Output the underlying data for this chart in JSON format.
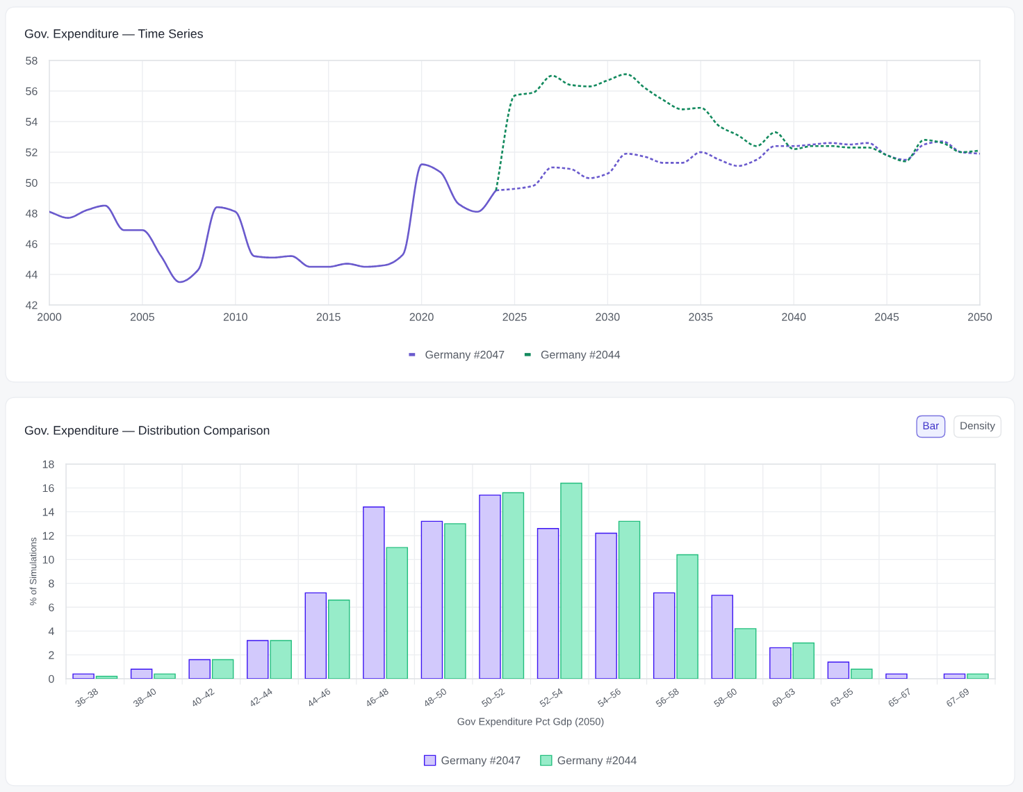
{
  "chart_data": [
    {
      "type": "line",
      "title": "Gov. Expenditure — Time Series",
      "xlim": [
        2000,
        2050
      ],
      "xticks": [
        2000,
        2005,
        2010,
        2015,
        2020,
        2025,
        2030,
        2035,
        2040,
        2045,
        2050
      ],
      "ylim": [
        42,
        58
      ],
      "yticks": [
        42,
        44,
        46,
        48,
        50,
        52,
        54,
        56,
        58
      ],
      "grid": true,
      "legend": "bottom",
      "series": [
        {
          "color": "#6a5acd",
          "line_style": "solid",
          "x": [
            2000,
            2001,
            2002,
            2003,
            2004,
            2005,
            2006,
            2007,
            2008,
            2009,
            2010,
            2011,
            2012,
            2013,
            2014,
            2015,
            2016,
            2017,
            2018,
            2019,
            2020,
            2021,
            2022,
            2023,
            2024
          ],
          "values": [
            48.1,
            47.7,
            48.2,
            48.5,
            46.9,
            46.9,
            45.2,
            43.5,
            44.3,
            48.4,
            48.1,
            45.2,
            45.1,
            45.2,
            44.5,
            44.5,
            44.7,
            44.5,
            44.6,
            45.3,
            51.2,
            50.7,
            48.6,
            48.1,
            49.5
          ]
        },
        {
          "name": "Germany #2047",
          "color": "#6a5acd",
          "line_style": "dashed",
          "x": [
            2024,
            2025,
            2026,
            2027,
            2028,
            2029,
            2030,
            2031,
            2032,
            2033,
            2034,
            2035,
            2036,
            2037,
            2038,
            2039,
            2040,
            2041,
            2042,
            2043,
            2044,
            2045,
            2046,
            2047,
            2048,
            2049,
            2050
          ],
          "values": [
            49.5,
            49.6,
            49.8,
            51.0,
            50.9,
            50.3,
            50.6,
            51.9,
            51.7,
            51.3,
            51.3,
            52.0,
            51.5,
            51.1,
            51.5,
            52.4,
            52.4,
            52.5,
            52.6,
            52.5,
            52.6,
            51.8,
            51.5,
            52.5,
            52.7,
            52.0,
            51.9
          ]
        },
        {
          "name": "Germany #2044",
          "color": "#138a5e",
          "line_style": "dashed",
          "x": [
            2024,
            2025,
            2026,
            2027,
            2028,
            2029,
            2030,
            2031,
            2032,
            2033,
            2034,
            2035,
            2036,
            2037,
            2038,
            2039,
            2040,
            2041,
            2042,
            2043,
            2044,
            2045,
            2046,
            2047,
            2048,
            2049,
            2050
          ],
          "values": [
            49.5,
            55.7,
            55.9,
            57.0,
            56.4,
            56.3,
            56.7,
            57.1,
            56.2,
            55.4,
            54.8,
            54.9,
            53.7,
            53.1,
            52.4,
            53.3,
            52.2,
            52.4,
            52.4,
            52.3,
            52.3,
            51.8,
            51.4,
            52.8,
            52.6,
            52.0,
            52.1
          ]
        }
      ]
    },
    {
      "type": "bar",
      "title": "Gov. Expenditure — Distribution Comparison",
      "xlabel": "Gov Expenditure Pct Gdp (2050)",
      "ylabel": "% of Simulations",
      "annotations": [
        "Bar",
        "Density"
      ],
      "categories": [
        "36–38",
        "38–40",
        "40–42",
        "42–44",
        "44–46",
        "46–48",
        "48–50",
        "50–52",
        "52–54",
        "54–56",
        "56–58",
        "58–60",
        "60–63",
        "63–65",
        "65–67",
        "67–69"
      ],
      "ylim": [
        0,
        18
      ],
      "yticks": [
        0,
        2,
        4,
        6,
        8,
        10,
        12,
        14,
        16,
        18
      ],
      "grid": true,
      "legend": "bottom",
      "series": [
        {
          "name": "Germany #2047",
          "color": "#d2c9fc",
          "values": [
            0.4,
            0.8,
            1.6,
            3.2,
            7.2,
            14.4,
            13.2,
            15.4,
            12.6,
            12.2,
            7.2,
            7.0,
            2.6,
            1.4,
            0.4,
            0.4
          ]
        },
        {
          "name": "Germany #2044",
          "color": "#97ecc9",
          "values": [
            0.2,
            0.4,
            1.6,
            3.2,
            6.6,
            11.0,
            13.0,
            15.6,
            16.4,
            13.2,
            10.4,
            4.2,
            3.0,
            0.8,
            null,
            0.4
          ]
        }
      ]
    }
  ]
}
